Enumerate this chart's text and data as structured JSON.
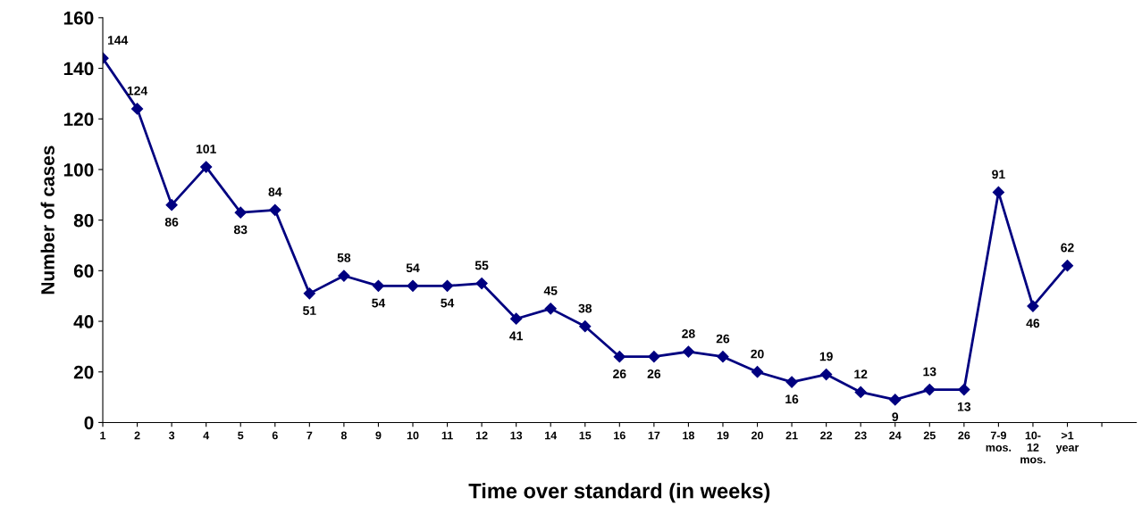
{
  "chart_data": {
    "type": "line",
    "xlabel": "Time over standard (in weeks)",
    "ylabel": "Number of cases",
    "categories": [
      "1",
      "2",
      "3",
      "4",
      "5",
      "6",
      "7",
      "8",
      "9",
      "10",
      "11",
      "12",
      "13",
      "14",
      "15",
      "16",
      "17",
      "18",
      "19",
      "20",
      "21",
      "22",
      "23",
      "24",
      "25",
      "26",
      "7-9\nmos.",
      "10-\n12\nmos.",
      ">1\nyear",
      null
    ],
    "series": [
      {
        "color": "#000080",
        "values": [
          144,
          124,
          86,
          101,
          83,
          84,
          51,
          58,
          54,
          54,
          54,
          55,
          41,
          45,
          38,
          26,
          26,
          28,
          26,
          20,
          16,
          19,
          12,
          9,
          13,
          13,
          91,
          46,
          62,
          null
        ]
      }
    ],
    "ylim": [
      0,
      160
    ],
    "yticks": [
      0,
      20,
      40,
      60,
      80,
      100,
      120,
      140,
      160
    ],
    "grid": false,
    "legend": false,
    "marker": "diamond",
    "line_style": "solid",
    "data_labels": true
  }
}
